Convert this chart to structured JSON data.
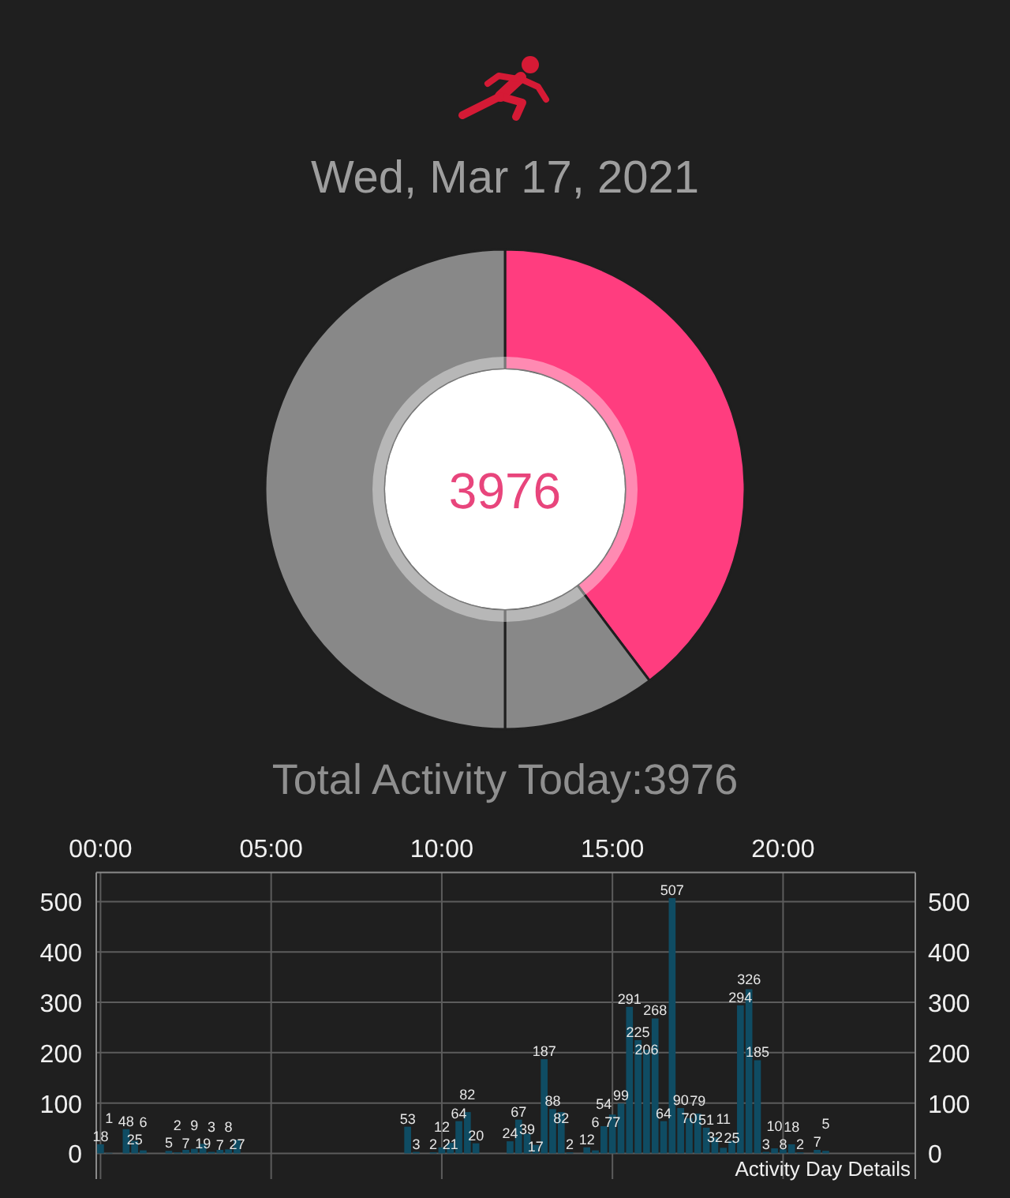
{
  "chart_data": [
    {
      "type": "donut",
      "title": "Wed, Mar 17, 2021",
      "categories": [
        null,
        null,
        null
      ],
      "values": [
        39.7,
        10.3,
        50
      ],
      "colors": [
        "#ff3d7f",
        "#888888",
        "#888888"
      ],
      "annotations": [
        "3976"
      ]
    },
    {
      "type": "bar",
      "title": "Total Activity Today:3976",
      "x": [
        0,
        0.25,
        0.75,
        1,
        1.25,
        2,
        2.25,
        2.5,
        2.75,
        3,
        3.25,
        3.5,
        3.75,
        4,
        9,
        9.25,
        9.75,
        10,
        10.25,
        10.5,
        10.75,
        11,
        12,
        12.25,
        12.5,
        12.75,
        13,
        13.25,
        13.5,
        13.75,
        14.25,
        14.5,
        14.75,
        15,
        15.25,
        15.5,
        15.75,
        16,
        16.25,
        16.5,
        16.75,
        17,
        17.25,
        17.5,
        17.75,
        18,
        18.25,
        18.5,
        18.75,
        19,
        19.25,
        19.5,
        19.75,
        20,
        20.25,
        20.5,
        21,
        21.25
      ],
      "values": [
        18,
        1,
        48,
        25,
        6,
        5,
        2,
        7,
        9,
        19,
        3,
        7,
        8,
        27,
        53,
        3,
        2,
        12,
        21,
        64,
        82,
        20,
        24,
        67,
        39,
        17,
        187,
        88,
        82,
        2,
        12,
        6,
        54,
        77,
        99,
        291,
        225,
        206,
        268,
        64,
        507,
        90,
        70,
        79,
        51,
        32,
        11,
        25,
        294,
        326,
        185,
        3,
        10,
        8,
        18,
        2,
        7,
        5
      ],
      "color": "#0f4c63",
      "xlim": [
        -0.125,
        23.875
      ],
      "xticks": [
        {
          "value": 0,
          "label": "00:00"
        },
        {
          "value": 5,
          "label": "05:00"
        },
        {
          "value": 10,
          "label": "10:00"
        },
        {
          "value": 15,
          "label": "15:00"
        },
        {
          "value": 20,
          "label": "20:00"
        }
      ],
      "ylim": [
        -51,
        558
      ],
      "yticks": [
        0,
        100,
        200,
        300,
        400,
        500
      ],
      "y2lim": [
        -51,
        558
      ],
      "y2ticks": [
        0,
        100,
        200,
        300,
        400,
        500
      ],
      "grid": true,
      "data_labels": true,
      "annotations": [
        "Activity Day Details"
      ]
    }
  ]
}
